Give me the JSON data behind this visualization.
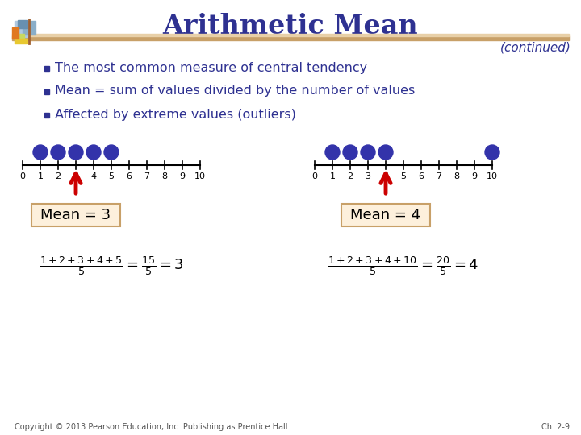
{
  "title": "Arithmetic Mean",
  "continued_text": "(continued)",
  "bullets": [
    "The most common measure of central tendency",
    "Mean = sum of values divided by the number of values",
    "Affected by extreme values (outliers)"
  ],
  "title_color": "#2E3191",
  "continued_color": "#2E3191",
  "bullet_color": "#2E3191",
  "bullet_marker_color": "#2E3191",
  "bg_color": "#FFFFFF",
  "number_line_left": {
    "values": [
      1,
      2,
      3,
      4,
      5
    ],
    "mean": 3,
    "label": "Mean = 3"
  },
  "number_line_right": {
    "values": [
      1,
      2,
      3,
      4,
      10
    ],
    "mean": 4,
    "label": "Mean = 4"
  },
  "dot_color": "#3333AA",
  "arrow_color": "#CC0000",
  "box_facecolor": "#FDF0DC",
  "box_edgecolor": "#C8A068",
  "footer_left": "Copyright © 2013 Pearson Education, Inc. Publishing as Prentice Hall",
  "footer_right": "Ch. 2-9",
  "footer_color": "#555555"
}
